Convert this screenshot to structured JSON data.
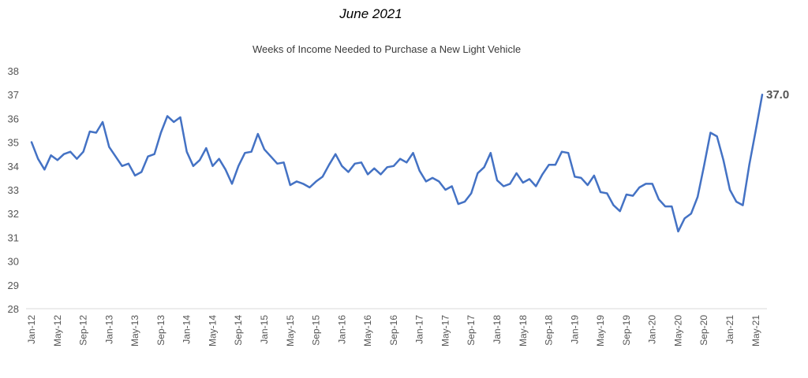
{
  "header": {
    "date_label": "June 2021"
  },
  "chart_data": {
    "type": "line",
    "title": "Weeks of Income Needed to Purchase a New Light Vehicle",
    "xlabel": "",
    "ylabel": "",
    "ylim": [
      28,
      38
    ],
    "yticks": [
      28,
      29,
      30,
      31,
      32,
      33,
      34,
      35,
      36,
      37,
      38
    ],
    "xtick_labels": [
      "Jan-12",
      "May-12",
      "Sep-12",
      "Jan-13",
      "May-13",
      "Sep-13",
      "Jan-14",
      "May-14",
      "Sep-14",
      "Jan-15",
      "May-15",
      "Sep-15",
      "Jan-16",
      "May-16",
      "Sep-16",
      "Jan-17",
      "May-17",
      "Sep-17",
      "Jan-18",
      "May-18",
      "Sep-18",
      "Jan-19",
      "May-19",
      "Sep-19",
      "Jan-20",
      "May-20",
      "Sep-20",
      "Jan-21",
      "May-21"
    ],
    "grid": false,
    "line_color": "#4472C4",
    "end_label": "37.0",
    "series": [
      {
        "values": [
          35.0,
          34.3,
          33.85,
          34.45,
          34.25,
          34.5,
          34.6,
          34.3,
          34.6,
          35.45,
          35.4,
          35.85,
          34.8,
          34.4,
          34.0,
          34.1,
          33.6,
          33.75,
          34.4,
          34.5,
          35.4,
          36.1,
          35.85,
          36.05,
          34.6,
          34.0,
          34.25,
          34.75,
          34.0,
          34.3,
          33.85,
          33.25,
          34.0,
          34.55,
          34.6,
          35.35,
          34.7,
          34.4,
          34.1,
          34.15,
          33.2,
          33.35,
          33.25,
          33.1,
          33.35,
          33.55,
          34.05,
          34.5,
          34.0,
          33.75,
          34.1,
          34.15,
          33.65,
          33.9,
          33.65,
          33.95,
          34.0,
          34.3,
          34.15,
          34.55,
          33.8,
          33.35,
          33.5,
          33.35,
          33.0,
          33.15,
          32.4,
          32.5,
          32.85,
          33.7,
          33.95,
          34.55,
          33.4,
          33.15,
          33.25,
          33.7,
          33.3,
          33.45,
          33.15,
          33.65,
          34.05,
          34.05,
          34.6,
          34.55,
          33.55,
          33.5,
          33.2,
          33.6,
          32.9,
          32.85,
          32.35,
          32.1,
          32.8,
          32.75,
          33.1,
          33.25,
          33.25,
          32.6,
          32.3,
          32.3,
          31.25,
          31.8,
          32.0,
          32.7,
          34.0,
          35.4,
          35.25,
          34.25,
          33.0,
          32.5,
          32.35,
          34.05,
          35.5,
          37.0
        ]
      }
    ]
  }
}
